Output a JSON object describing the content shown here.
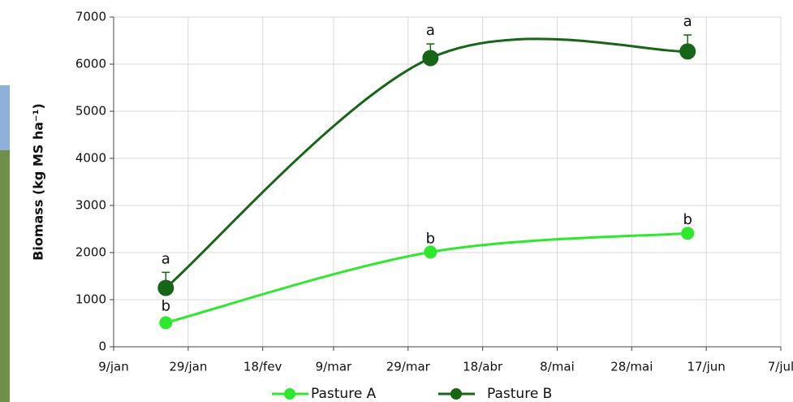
{
  "chart_data": {
    "type": "line",
    "ylabel": "Biomass (kg MS ha⁻¹)",
    "x": [
      23,
      94,
      163
    ],
    "xlim": [
      9,
      188
    ],
    "xticks": [
      {
        "value": 9,
        "label": "9/jan"
      },
      {
        "value": 29,
        "label": "29/jan"
      },
      {
        "value": 49,
        "label": "18/fev"
      },
      {
        "value": 68,
        "label": "9/mar"
      },
      {
        "value": 88,
        "label": "29/mar"
      },
      {
        "value": 108,
        "label": "18/abr"
      },
      {
        "value": 128,
        "label": "8/mai"
      },
      {
        "value": 148,
        "label": "28/mai"
      },
      {
        "value": 168,
        "label": "17/jun"
      },
      {
        "value": 188,
        "label": "7/jul"
      }
    ],
    "ylim": [
      0,
      7000
    ],
    "yticks": [
      0,
      1000,
      2000,
      3000,
      4000,
      5000,
      6000,
      7000
    ],
    "grid": true,
    "legend": "bottom",
    "series": [
      {
        "name": "Pasture A",
        "color": "#2ee82e",
        "values": [
          510,
          2010,
          2410
        ],
        "letters": [
          "b",
          "b",
          "b"
        ]
      },
      {
        "name": "Pasture B",
        "color": "#176617",
        "values": [
          1250,
          6130,
          6270
        ],
        "errors": [
          330,
          300,
          350
        ],
        "letters": [
          "a",
          "a",
          "a"
        ]
      }
    ]
  }
}
